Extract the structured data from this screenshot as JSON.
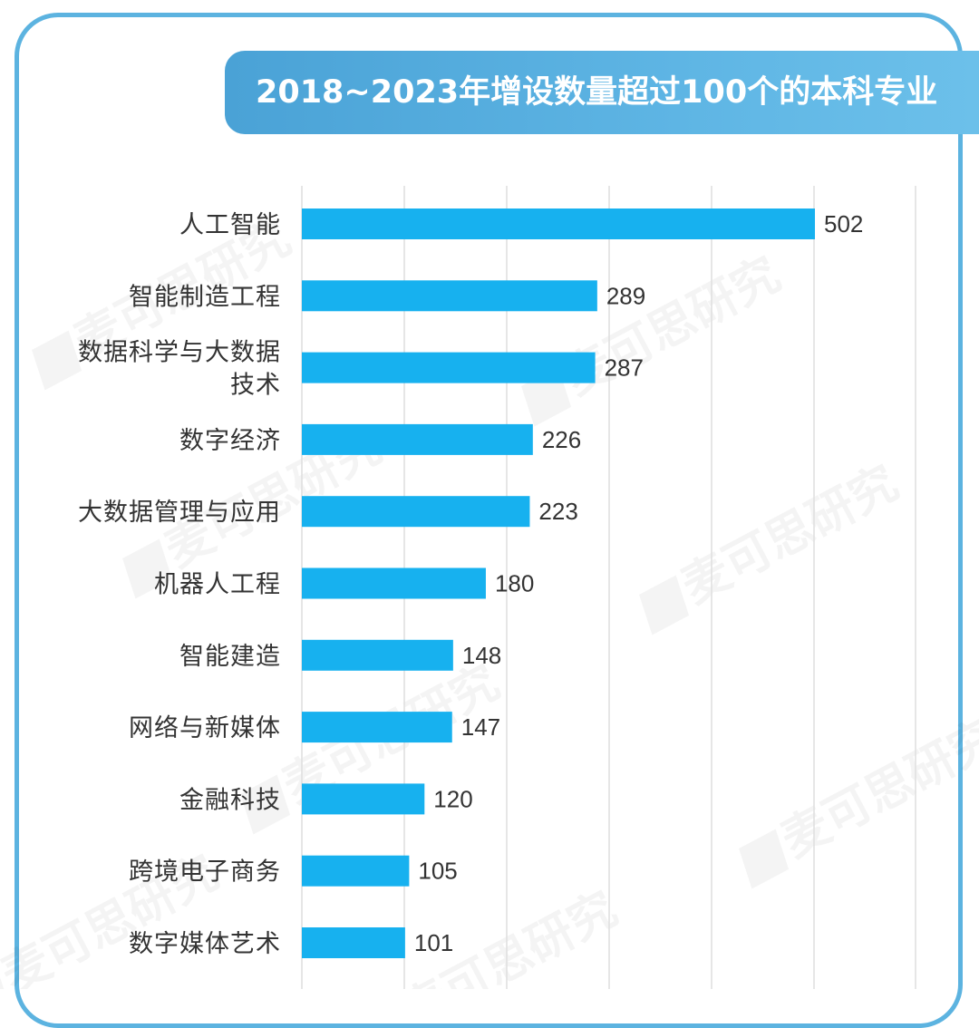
{
  "title": "2018~2023年增设数量超过100个的本科专业",
  "watermark": "麦可思研究",
  "colors": {
    "bar": "#17b1ef",
    "frame": "#5cb3e0",
    "banner": "#5ab2e2"
  },
  "chart_data": {
    "type": "bar",
    "orientation": "horizontal",
    "categories": [
      [
        "人工智能"
      ],
      [
        "智能制造工程"
      ],
      [
        "数据科学与大数据",
        "技术"
      ],
      [
        "数字经济"
      ],
      [
        "大数据管理与应用"
      ],
      [
        "机器人工程"
      ],
      [
        "智能建造"
      ],
      [
        "网络与新媒体"
      ],
      [
        "金融科技"
      ],
      [
        "跨境电子商务"
      ],
      [
        "数字媒体艺术"
      ]
    ],
    "values": [
      502,
      289,
      287,
      226,
      223,
      180,
      148,
      147,
      120,
      105,
      101
    ],
    "xlim": [
      0,
      600
    ],
    "grid": true,
    "data_labels": true
  }
}
